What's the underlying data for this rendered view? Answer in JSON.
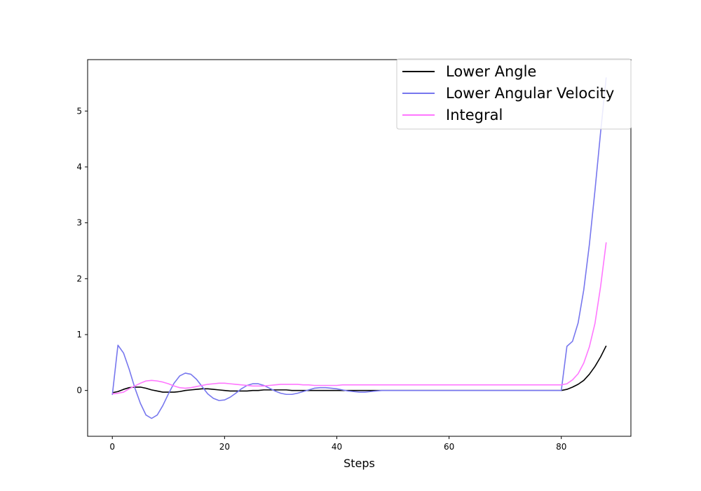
{
  "chart_data": {
    "type": "line",
    "title": "",
    "xlabel": "Steps",
    "ylabel": "",
    "xlim": [
      -4.4,
      92.4
    ],
    "ylim": [
      -0.82,
      5.92
    ],
    "xticks": [
      0,
      20,
      40,
      60,
      80
    ],
    "yticks": [
      0,
      1,
      2,
      3,
      4,
      5
    ],
    "grid": false,
    "legend_placement": "upper right",
    "series": [
      {
        "name": "Lower Angle",
        "color": "#000000",
        "x": [
          0,
          1,
          2,
          3,
          4,
          5,
          6,
          7,
          8,
          9,
          10,
          11,
          12,
          13,
          14,
          15,
          16,
          17,
          18,
          19,
          20,
          21,
          22,
          23,
          24,
          25,
          26,
          27,
          28,
          29,
          30,
          31,
          32,
          33,
          34,
          35,
          36,
          37,
          38,
          39,
          40,
          41,
          42,
          43,
          44,
          45,
          46,
          47,
          48,
          49,
          50,
          51,
          52,
          53,
          54,
          55,
          56,
          57,
          58,
          59,
          60,
          61,
          62,
          63,
          64,
          65,
          66,
          67,
          68,
          69,
          70,
          71,
          72,
          73,
          74,
          75,
          76,
          77,
          78,
          79,
          80,
          81,
          82,
          83,
          84,
          85,
          86,
          87,
          88
        ],
        "values": [
          -0.04,
          -0.02,
          0.02,
          0.05,
          0.06,
          0.06,
          0.04,
          0.01,
          -0.01,
          -0.03,
          -0.03,
          -0.03,
          -0.02,
          0.0,
          0.01,
          0.02,
          0.03,
          0.03,
          0.02,
          0.01,
          0.0,
          -0.01,
          -0.01,
          -0.01,
          -0.01,
          0.0,
          0.0,
          0.01,
          0.01,
          0.01,
          0.01,
          0.01,
          0.0,
          0.0,
          0.0,
          0.0,
          0.0,
          0.0,
          0.0,
          0.0,
          0.0,
          0.0,
          0.0,
          0.0,
          0.0,
          0.0,
          0.0,
          0.0,
          0.0,
          0.0,
          0.0,
          0.0,
          0.0,
          0.0,
          0.0,
          0.0,
          0.0,
          0.0,
          0.0,
          0.0,
          0.0,
          0.0,
          0.0,
          0.0,
          0.0,
          0.0,
          0.0,
          0.0,
          0.0,
          0.0,
          0.0,
          0.0,
          0.0,
          0.0,
          0.0,
          0.0,
          0.0,
          0.0,
          0.0,
          0.0,
          0.0,
          0.02,
          0.06,
          0.11,
          0.18,
          0.29,
          0.43,
          0.6,
          0.8
        ]
      },
      {
        "name": "Lower Angular Velocity",
        "color": "#7777ee",
        "x": [
          0,
          1,
          2,
          3,
          4,
          5,
          6,
          7,
          8,
          9,
          10,
          11,
          12,
          13,
          14,
          15,
          16,
          17,
          18,
          19,
          20,
          21,
          22,
          23,
          24,
          25,
          26,
          27,
          28,
          29,
          30,
          31,
          32,
          33,
          34,
          35,
          36,
          37,
          38,
          39,
          40,
          41,
          42,
          43,
          44,
          45,
          46,
          47,
          48,
          49,
          50,
          51,
          52,
          53,
          54,
          55,
          56,
          57,
          58,
          59,
          60,
          61,
          62,
          63,
          64,
          65,
          66,
          67,
          68,
          69,
          70,
          71,
          72,
          73,
          74,
          75,
          76,
          77,
          78,
          79,
          80,
          81,
          82,
          83,
          84,
          85,
          86,
          87,
          88
        ],
        "values": [
          -0.08,
          0.81,
          0.67,
          0.38,
          0.05,
          -0.23,
          -0.44,
          -0.5,
          -0.44,
          -0.27,
          -0.06,
          0.13,
          0.26,
          0.31,
          0.29,
          0.2,
          0.07,
          -0.06,
          -0.14,
          -0.18,
          -0.17,
          -0.12,
          -0.05,
          0.03,
          0.09,
          0.12,
          0.12,
          0.09,
          0.04,
          -0.01,
          -0.05,
          -0.07,
          -0.07,
          -0.05,
          -0.02,
          0.01,
          0.04,
          0.05,
          0.05,
          0.04,
          0.03,
          0.01,
          -0.01,
          -0.02,
          -0.03,
          -0.03,
          -0.02,
          -0.01,
          0.0,
          0.0,
          0.0,
          0.0,
          0.0,
          0.0,
          0.0,
          0.0,
          0.0,
          0.0,
          0.0,
          0.0,
          0.0,
          0.0,
          0.0,
          0.0,
          0.0,
          0.0,
          0.0,
          0.0,
          0.0,
          0.0,
          0.0,
          0.0,
          0.0,
          0.0,
          0.0,
          0.0,
          0.0,
          0.0,
          0.0,
          0.0,
          0.0,
          0.79,
          0.88,
          1.21,
          1.8,
          2.61,
          3.58,
          4.62,
          5.6
        ]
      },
      {
        "name": "Integral",
        "color": "#ff77ff",
        "x": [
          0,
          1,
          2,
          3,
          4,
          5,
          6,
          7,
          8,
          9,
          10,
          11,
          12,
          13,
          14,
          15,
          16,
          17,
          18,
          19,
          20,
          21,
          22,
          23,
          24,
          25,
          26,
          27,
          28,
          29,
          30,
          31,
          32,
          33,
          34,
          35,
          36,
          37,
          38,
          39,
          40,
          41,
          42,
          43,
          44,
          45,
          46,
          47,
          48,
          49,
          50,
          51,
          52,
          53,
          54,
          55,
          56,
          57,
          58,
          59,
          60,
          61,
          62,
          63,
          64,
          65,
          66,
          67,
          68,
          69,
          70,
          71,
          72,
          73,
          74,
          75,
          76,
          77,
          78,
          79,
          80,
          81,
          82,
          83,
          84,
          85,
          86,
          87,
          88
        ],
        "values": [
          -0.06,
          -0.05,
          -0.03,
          0.03,
          0.08,
          0.13,
          0.17,
          0.18,
          0.17,
          0.15,
          0.12,
          0.08,
          0.05,
          0.04,
          0.05,
          0.07,
          0.09,
          0.11,
          0.12,
          0.13,
          0.13,
          0.12,
          0.11,
          0.1,
          0.09,
          0.08,
          0.08,
          0.08,
          0.09,
          0.1,
          0.11,
          0.11,
          0.11,
          0.11,
          0.1,
          0.1,
          0.09,
          0.09,
          0.09,
          0.09,
          0.09,
          0.1,
          0.1,
          0.1,
          0.1,
          0.1,
          0.1,
          0.1,
          0.1,
          0.1,
          0.1,
          0.1,
          0.1,
          0.1,
          0.1,
          0.1,
          0.1,
          0.1,
          0.1,
          0.1,
          0.1,
          0.1,
          0.1,
          0.1,
          0.1,
          0.1,
          0.1,
          0.1,
          0.1,
          0.1,
          0.1,
          0.1,
          0.1,
          0.1,
          0.1,
          0.1,
          0.1,
          0.1,
          0.1,
          0.1,
          0.1,
          0.12,
          0.19,
          0.3,
          0.49,
          0.78,
          1.2,
          1.86,
          2.65
        ]
      }
    ]
  }
}
